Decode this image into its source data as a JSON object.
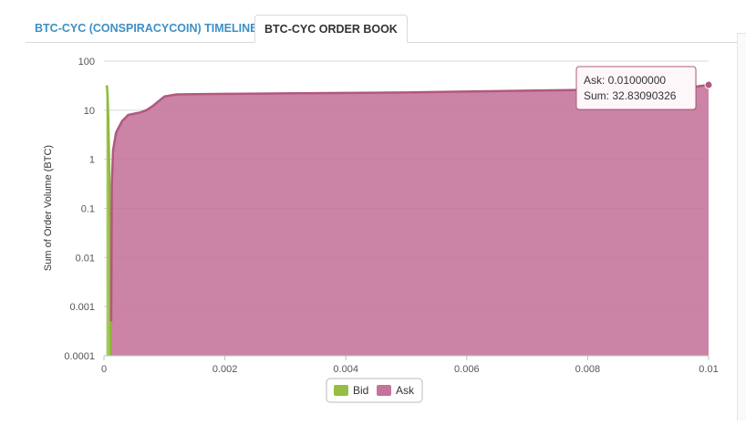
{
  "tabs": [
    {
      "label": "BTC-CYC (CONSPIRACYCOIN) TIMELINE",
      "active": false
    },
    {
      "label": "BTC-CYC ORDER BOOK",
      "active": true
    }
  ],
  "chart_data": {
    "type": "area",
    "title": "",
    "ylabel": "Sum of Order Volume (BTC)",
    "xlabel": "",
    "y_scale": "log",
    "ylim": [
      0.0001,
      100
    ],
    "xlim": [
      0,
      0.01
    ],
    "x_ticks": [
      "0",
      "0.002",
      "0.004",
      "0.006",
      "0.008",
      "0.01"
    ],
    "y_ticks": [
      "100",
      "10",
      "1",
      "0.1",
      "0.01",
      "0.001",
      "0.0001"
    ],
    "x_tick_values": [
      0,
      0.002,
      0.004,
      0.006,
      0.008,
      0.01
    ],
    "y_tick_values": [
      100,
      10,
      1,
      0.1,
      0.01,
      0.001,
      0.0001
    ],
    "grid": true,
    "legend_position": "bottom-center",
    "series": [
      {
        "name": "Bid",
        "color": "#97bd42",
        "x": [
          4e-05,
          5e-05,
          6e-05,
          7e-05,
          8e-05,
          9e-05,
          0.0001,
          0.00011
        ],
        "y": [
          32,
          30,
          20,
          8,
          2,
          0.5,
          0.01,
          0.0001
        ]
      },
      {
        "name": "Ask",
        "color": "#c4739a",
        "x": [
          0.00012,
          0.00013,
          0.00015,
          0.0002,
          0.0003,
          0.0004,
          0.0005,
          0.0006,
          0.0007,
          0.0008,
          0.001,
          0.0012,
          0.002,
          0.003,
          0.004,
          0.005,
          0.006,
          0.007,
          0.008,
          0.009,
          0.0095,
          0.01
        ],
        "y": [
          0.0005,
          0.3,
          1.5,
          3.5,
          6,
          8,
          8.5,
          9,
          10,
          12,
          19,
          21,
          21.5,
          22,
          22.5,
          23,
          24,
          25,
          26,
          26.5,
          27,
          32.8309
        ]
      }
    ],
    "tooltip": {
      "series": "Ask",
      "label_line1": "Ask: 0.01000000",
      "label_line2": "Sum: 32.83090326",
      "x": 0.01,
      "y": 32.83090326
    }
  }
}
